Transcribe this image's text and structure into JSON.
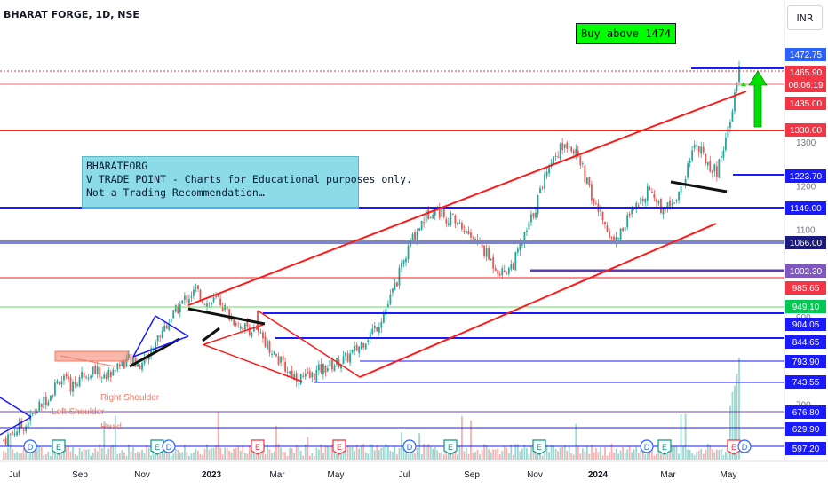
{
  "header": {
    "symbol_title": "BHARAT FORGE, 1D, NSE",
    "currency": "INR"
  },
  "buy_note": "Buy above 1474",
  "info_box": {
    "line1": "BHARATFORG",
    "line2": "V TRADE POINT - Charts for Educational purposes only.",
    "line3": "Not a Trading Recommendation…"
  },
  "colors": {
    "up": "#26a69a",
    "down": "#ef5350",
    "trend_red": "#ff1a1a",
    "level_blue": "#1a1aff",
    "buy_green": "#00ff00"
  },
  "chart_data": {
    "type": "candlestick",
    "symbol": "BHARAT FORGE",
    "timeframe": "1D",
    "exchange": "NSE",
    "x_ticks": [
      "Jul",
      "Sep",
      "Nov",
      "2023",
      "Mar",
      "May",
      "Jul",
      "Sep",
      "Nov",
      "2024",
      "Mar",
      "May"
    ],
    "y_ticks": [
      1300,
      1200,
      1100,
      1000,
      900,
      800,
      700,
      600
    ],
    "price_labels": [
      {
        "value": "1472.75",
        "color": "#2962ff"
      },
      {
        "value": "1465.90",
        "color": "#f23645",
        "extra": "06:06:19"
      },
      {
        "value": "1435.00",
        "color": "#f23645"
      },
      {
        "value": "1330.00",
        "color": "#f23645"
      },
      {
        "value": "1223.70",
        "color": "#1a1aff"
      },
      {
        "value": "1149.00",
        "color": "#1a1aff"
      },
      {
        "value": "1066.00",
        "color": "#1a1a80"
      },
      {
        "value": "1002.30",
        "color": "#7e57c2"
      },
      {
        "value": "985.65",
        "color": "#f23645"
      },
      {
        "value": "949.10",
        "color": "#00c853"
      },
      {
        "value": "904.05",
        "color": "#1a1aff"
      },
      {
        "value": "844.65",
        "color": "#1a1aff"
      },
      {
        "value": "793.90",
        "color": "#1a1aff"
      },
      {
        "value": "743.55",
        "color": "#1a1aff"
      },
      {
        "value": "676.80",
        "color": "#1a1aff"
      },
      {
        "value": "629.90",
        "color": "#1a1aff"
      },
      {
        "value": "597.20",
        "color": "#1a1aff"
      }
    ],
    "annotations": [
      "Left Shoulder",
      "Head",
      "Right Shoulder"
    ],
    "events": [
      "D",
      "E",
      "E",
      "D",
      "E",
      "E",
      "D",
      "E",
      "D",
      "E",
      "E",
      "D",
      "E",
      "E"
    ],
    "close_approx": [
      618,
      640,
      655,
      690,
      720,
      760,
      740,
      770,
      780,
      760,
      790,
      800,
      790,
      820,
      870,
      905,
      940,
      960,
      930,
      940,
      900,
      880,
      870,
      850,
      810,
      780,
      760,
      760,
      780,
      790,
      800,
      820,
      850,
      880,
      930,
      1000,
      1070,
      1120,
      1150,
      1130,
      1120,
      1090,
      1070,
      1030,
      1000,
      1020,
      1080,
      1150,
      1240,
      1280,
      1300,
      1250,
      1170,
      1120,
      1070,
      1120,
      1150,
      1200,
      1150,
      1160,
      1200,
      1300,
      1260,
      1230,
      1330,
      1465
    ]
  }
}
